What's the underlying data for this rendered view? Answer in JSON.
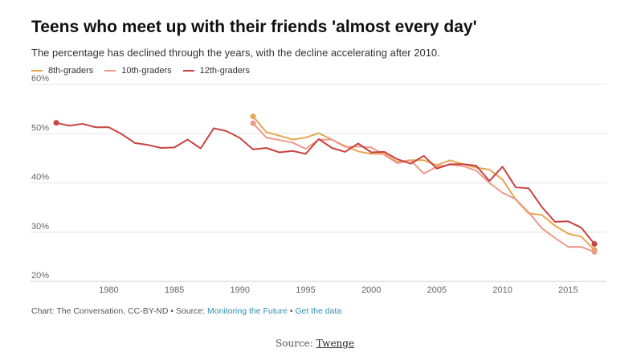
{
  "title": "Teens who meet up with their friends 'almost every day'",
  "subtitle": "The percentage has declined through the years, with the decline accelerating after 2010.",
  "footer": {
    "prefix": "Chart: The Conversation, CC-BY-ND • Source: ",
    "source_link": "Monitoring the Future",
    "separator": " • ",
    "data_link": "Get the data"
  },
  "source_caption": {
    "label": "Source: ",
    "link": "Twenge"
  },
  "chart_data": {
    "type": "line",
    "title": "Teens who meet up with their friends 'almost every day'",
    "xlabel": "",
    "ylabel": "",
    "xlim": [
      1976,
      2017
    ],
    "ylim": [
      20,
      60
    ],
    "y_ticks": [
      20,
      30,
      40,
      50,
      60
    ],
    "y_tick_labels": [
      "20%",
      "30%",
      "40%",
      "50%",
      "60%"
    ],
    "x_ticks": [
      1980,
      1985,
      1990,
      1995,
      2000,
      2005,
      2010,
      2015
    ],
    "x_tick_labels": [
      "1980",
      "1985",
      "1990",
      "1995",
      "2000",
      "2005",
      "2010",
      "2015"
    ],
    "grid": true,
    "legend_position": "top-left",
    "series": [
      {
        "name": "8th-graders",
        "color": "#e8a64f",
        "x": [
          1991,
          1992,
          1993,
          1994,
          1995,
          1996,
          1997,
          1998,
          1999,
          2000,
          2001,
          2002,
          2003,
          2004,
          2005,
          2006,
          2007,
          2008,
          2009,
          2010,
          2011,
          2012,
          2013,
          2014,
          2015,
          2016,
          2017
        ],
        "y": [
          53.5,
          50.3,
          49.6,
          48.8,
          49.2,
          50.1,
          48.8,
          47.5,
          46.4,
          45.9,
          45.9,
          44.3,
          44.6,
          44.6,
          43.6,
          44.6,
          43.8,
          43.1,
          42.7,
          40.7,
          36.6,
          33.8,
          33.5,
          31.3,
          29.7,
          29.1,
          26.4
        ]
      },
      {
        "name": "10th-graders",
        "color": "#ec9a8c",
        "x": [
          1991,
          1992,
          1993,
          1994,
          1995,
          1996,
          1997,
          1998,
          1999,
          2000,
          2001,
          2002,
          2003,
          2004,
          2005,
          2006,
          2007,
          2008,
          2009,
          2010,
          2011,
          2012,
          2013,
          2014,
          2015,
          2016,
          2017
        ],
        "y": [
          52.1,
          49.2,
          48.7,
          48.2,
          46.9,
          48.8,
          48.8,
          47.3,
          47.4,
          47.2,
          45.7,
          44.0,
          44.6,
          41.9,
          43.3,
          43.7,
          43.4,
          42.5,
          40.0,
          38.0,
          36.7,
          34.0,
          30.8,
          28.8,
          27.0,
          27.0,
          26.0
        ]
      },
      {
        "name": "12th-graders",
        "color": "#c94340",
        "x": [
          1976,
          1977,
          1978,
          1979,
          1980,
          1981,
          1982,
          1983,
          1984,
          1985,
          1986,
          1987,
          1988,
          1989,
          1990,
          1991,
          1992,
          1993,
          1994,
          1995,
          1996,
          1997,
          1998,
          1999,
          2000,
          2001,
          2002,
          2003,
          2004,
          2005,
          2006,
          2007,
          2008,
          2009,
          2010,
          2011,
          2012,
          2013,
          2014,
          2015,
          2016,
          2017
        ],
        "y": [
          52.2,
          51.6,
          52.0,
          51.3,
          51.3,
          49.9,
          48.1,
          47.7,
          47.1,
          47.2,
          48.8,
          47.0,
          51.1,
          50.5,
          49.1,
          46.8,
          47.1,
          46.2,
          46.5,
          45.9,
          48.9,
          47.1,
          46.3,
          48.0,
          46.2,
          46.3,
          44.8,
          43.9,
          45.5,
          42.9,
          43.8,
          43.8,
          43.5,
          40.4,
          43.3,
          39.1,
          38.9,
          35.1,
          32.1,
          32.2,
          30.9,
          27.6
        ]
      }
    ]
  }
}
